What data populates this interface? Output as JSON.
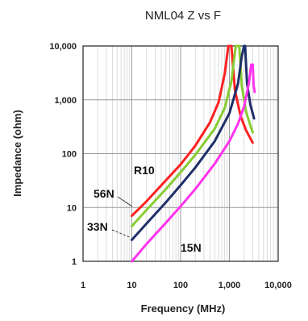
{
  "chart_data": {
    "type": "line",
    "title": "NML04 Z vs F",
    "xlabel": "Frequency (MHz)",
    "ylabel": "Impedance (ohm)",
    "x_scale": "log",
    "y_scale": "log",
    "xlim": [
      1,
      10000
    ],
    "ylim": [
      1,
      10000
    ],
    "x_ticks": [
      1,
      10,
      100,
      1000,
      10000
    ],
    "x_tick_labels": [
      "1",
      "10",
      "100",
      "1,000",
      "10,000"
    ],
    "y_ticks": [
      1,
      10,
      100,
      1000,
      10000
    ],
    "y_tick_labels": [
      "1",
      "10",
      "100",
      "1,000",
      "10,000"
    ],
    "grid": true,
    "series": [
      {
        "name": "R10",
        "color": "#ff2020",
        "branches": [
          {
            "x": [
              10,
              20,
              50,
              100,
              200,
              400,
              600,
              800,
              950,
              1000
            ],
            "y": [
              7,
              13,
              32,
              63,
              140,
              380,
              900,
              3000,
              10000,
              10000
            ]
          },
          {
            "x": [
              1100,
              1300,
              1700,
              2200,
              3000
            ],
            "y": [
              10000,
              1500,
              500,
              270,
              160
            ]
          }
        ]
      },
      {
        "name": "56N",
        "color": "#88cc33",
        "branches": [
          {
            "x": [
              10,
              20,
              50,
              100,
              200,
              500,
              800,
              1100,
              1350,
              1500
            ],
            "y": [
              4.5,
              9,
              22,
              45,
              95,
              290,
              700,
              2200,
              10000,
              10000
            ]
          },
          {
            "x": [
              1600,
              1800,
              2200,
              2700,
              3000
            ],
            "y": [
              10000,
              1800,
              600,
              330,
              250
            ]
          }
        ]
      },
      {
        "name": "33N",
        "color": "#1f2f6a",
        "branches": [
          {
            "x": [
              10,
              20,
              50,
              100,
              200,
              500,
              1000,
              1500,
              1800,
              2000
            ],
            "y": [
              2.5,
              5,
              12.5,
              26,
              55,
              170,
              560,
              2000,
              6500,
              10000
            ]
          },
          {
            "x": [
              2100,
              2300,
              2700,
              3200
            ],
            "y": [
              10000,
              2000,
              800,
              450
            ]
          }
        ]
      },
      {
        "name": "15N",
        "color": "#ff33ee",
        "branches": [
          {
            "x": [
              10,
              20,
              50,
              100,
              200,
              500,
              1000,
              1500,
              2000,
              2500,
              2800,
              3000
            ],
            "y": [
              1,
              2.1,
              5.2,
              10.5,
              22,
              65,
              170,
              360,
              750,
              2000,
              4500,
              4500
            ]
          },
          {
            "x": [
              3000,
              3150,
              3300
            ],
            "y": [
              4500,
              1800,
              1400
            ]
          }
        ]
      }
    ]
  }
}
